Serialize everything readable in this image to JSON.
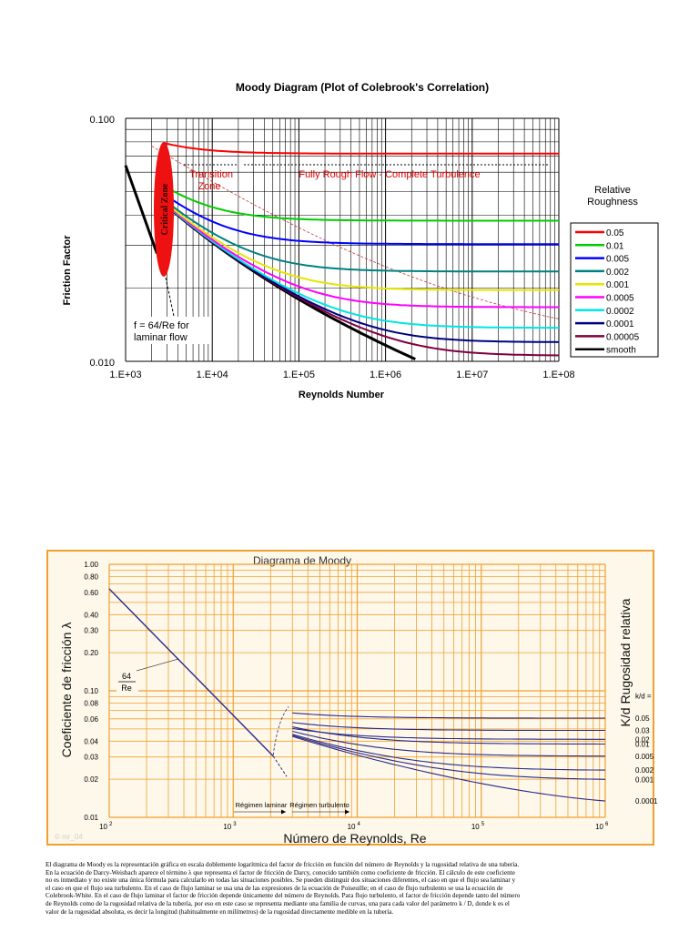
{
  "chart_data": [
    {
      "type": "line",
      "title": "Moody Diagram (Plot of Colebrook's Correlation)",
      "xlabel": "Reynolds Number",
      "ylabel": "Friction Factor",
      "xscale": "log",
      "yscale": "log",
      "xlim": [
        1000,
        100000000
      ],
      "ylim": [
        0.01,
        0.1
      ],
      "x_tick_labels": [
        "1.E+03",
        "1.E+04",
        "1.E+05",
        "1.E+06",
        "1.E+07",
        "1.E+08"
      ],
      "y_tick_labels": [
        "0.100",
        "0.010"
      ],
      "grid": true,
      "legend_title": "Relative Roughness",
      "legend_position": "right",
      "annotations": {
        "critical": "Critical Zone",
        "transition_1": "Transition",
        "transition_2": "Zone",
        "rough": "Fully Rough Flow - Complete Turbulence",
        "laminar_1": "f = 64/Re for",
        "laminar_2": "laminar flow"
      },
      "laminar": {
        "x": [
          1000,
          2300
        ],
        "y": [
          0.064,
          0.0278
        ]
      },
      "series": [
        {
          "name": "0.05",
          "roughness": 0.05,
          "color": "#ff0000"
        },
        {
          "name": "0.01",
          "roughness": 0.01,
          "color": "#00cc00"
        },
        {
          "name": "0.005",
          "roughness": 0.005,
          "color": "#0000ff"
        },
        {
          "name": "0.002",
          "roughness": 0.002,
          "color": "#008080"
        },
        {
          "name": "0.001",
          "roughness": 0.001,
          "color": "#e6e600"
        },
        {
          "name": "0.0005",
          "roughness": 0.0005,
          "color": "#ff00ff"
        },
        {
          "name": "0.0002",
          "roughness": 0.0002,
          "color": "#00e5e5"
        },
        {
          "name": "0.0001",
          "roughness": 0.0001,
          "color": "#000080"
        },
        {
          "name": "0.00005",
          "roughness": 5e-05,
          "color": "#800040"
        },
        {
          "name": "smooth",
          "roughness": 0,
          "color": "#000000"
        }
      ]
    },
    {
      "type": "line",
      "title": "Diagrama de Moody",
      "xlabel": "Número de Reynolds, Re",
      "ylabel": "Coeficiente de fricción λ",
      "y2label": "K/d Rugosidad relativa",
      "xscale": "log",
      "yscale": "log",
      "xlim": [
        100,
        1000000
      ],
      "ylim": [
        0.01,
        1.0
      ],
      "x_tick_labels": [
        {
          "base": "10",
          "exp": "2",
          "value": 100
        },
        {
          "base": "10",
          "exp": "3",
          "value": 1000
        },
        {
          "base": "10",
          "exp": "4",
          "value": 10000
        },
        {
          "base": "10",
          "exp": "5",
          "value": 100000
        },
        {
          "base": "10",
          "exp": "6",
          "value": 1000000
        }
      ],
      "y_tick_labels": [
        "1.00",
        "0.80",
        "0.60",
        "0.40",
        "0.30",
        "0.20",
        "0.10",
        "0.08",
        "0.06",
        "0.04",
        "0.03",
        "0.02",
        "0.01"
      ],
      "y_tick_values": [
        1.0,
        0.8,
        0.6,
        0.4,
        0.3,
        0.2,
        0.1,
        0.08,
        0.06,
        0.04,
        0.03,
        0.02,
        0.01
      ],
      "grid": true,
      "roughness_header": "k/d =",
      "roughness_labels": [
        "0.05",
        "0.03",
        "0.02",
        "0.01",
        "0.005",
        "0.002",
        "0.001",
        "0.0001"
      ],
      "roughness_values": [
        0.05,
        0.03,
        0.02,
        0.01,
        0.005,
        0.002,
        0.001,
        0.0001
      ],
      "laminar_label_num": "64",
      "laminar_label_den": "Re",
      "regime_laminar": "Régimen laminar",
      "regime_turbulent": "Régimen turbulento",
      "watermark": "© mr_04",
      "colors": {
        "grid": "#f0a030",
        "frame": "#f0a030",
        "curves": "#2a2a8a",
        "panel": "#fdf8ea"
      }
    }
  ],
  "paragraph": [
    "El diagrama de Moody es la representación gráfica en escala doblemente logarítmica del factor de fricción en función del número de Reynolds y la rugosidad relativa de una tubería.",
    "En la ecuación de Darcy-Weisbach aparece el término λ que representa el factor de fricción de Darcy, conocido también como coeficiente de fricción. El cálculo de este coeficiente",
    "no es inmediato y no existe una única fórmula para calcularlo en todas las situaciones posibles.  Se pueden distinguir dos situaciones diferentes, el caso en que el flujo sea laminar y",
    "el caso en que el flujo sea turbulento. En el caso de flujo laminar se usa una de las expresiones de la ecuación de Poiseuille; en el caso de flujo turbulento se usa la ecuación de",
    "Colebrook-White.  En el caso de flujo laminar el factor de fricción depende únicamente del número de Reynolds. Para flujo turbulento, el factor de fricción depende tanto del número",
    "de Reynolds como de la rugosidad relativa de la tubería, por eso en este caso se representa mediante una familia de curvas, una para cada valor del parámetro k / D, donde k es el",
    "valor de la rugosidad absoluta, es decir la longitud (habitualmente en milímetros) de la rugosidad directamente medible en la tubería."
  ]
}
